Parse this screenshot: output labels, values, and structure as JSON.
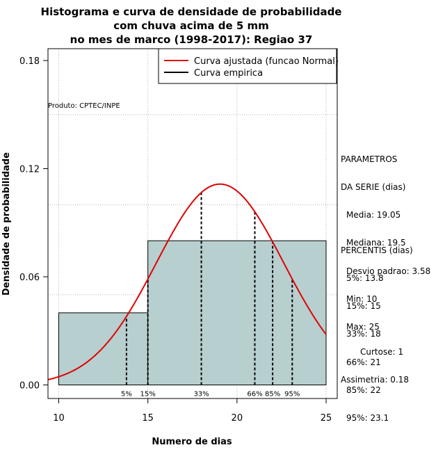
{
  "chart_data": {
    "type": "histogram",
    "title_lines": [
      "Histograma e curva de densidade de probabilidade",
      "com chuva acima de 5 mm",
      "no mes de marco (1998-2017): Regiao 37"
    ],
    "xlabel": "Numero de dias",
    "ylabel": "Densidade de probabilidade",
    "xlim": [
      9.4,
      25.6
    ],
    "ylim": [
      0,
      0.18
    ],
    "x_ticks": [
      10,
      15,
      20,
      25
    ],
    "y_ticks": [
      0.0,
      0.06,
      0.12,
      0.18
    ],
    "y_tick_labels": [
      "0.00",
      "0.06",
      "0.12",
      "0.18"
    ],
    "grid_x": [
      10,
      15,
      20,
      25
    ],
    "grid_y": [
      0.05,
      0.1,
      0.15
    ],
    "bins": [
      {
        "from": 10,
        "to": 15,
        "density": 0.04
      },
      {
        "from": 15,
        "to": 25,
        "density": 0.08
      }
    ],
    "fitted_curve": {
      "distribution": "normal",
      "mean": 19.05,
      "sd": 3.58,
      "x_range": [
        9.4,
        25
      ]
    },
    "percentile_lines": [
      {
        "label": "5%",
        "x": 13.8
      },
      {
        "label": "15%",
        "x": 15
      },
      {
        "label": "33%",
        "x": 18
      },
      {
        "label": "66%",
        "x": 21
      },
      {
        "label": "85%",
        "x": 22
      },
      {
        "label": "95%",
        "x": 23.1
      }
    ],
    "legend": {
      "position": "top-right",
      "entries": [
        {
          "label": "Curva ajustada (funcao Normal)",
          "color": "#e00000"
        },
        {
          "label": "Curva empirica",
          "color": "#000000"
        }
      ]
    },
    "annotation": "Produto: CPTEC/INPE",
    "colors": {
      "bar_fill": "#b7cfcf",
      "curve": "#e00000",
      "grid": "#b3b3b3",
      "axis": "#000000"
    }
  },
  "side_panel": {
    "params_title": [
      "PARAMETROS",
      "DA SERIE (dias)"
    ],
    "params": [
      "Media: 19.05",
      "Mediana: 19.5",
      "Desvio padrao: 3.58",
      "Min: 10",
      "Max: 25"
    ],
    "percentis_title": "PERCENTIS (dias)",
    "percentis": [
      "5%: 13.8",
      "15%: 15",
      "33%: 18",
      "66%: 21",
      "85%: 22",
      "95%: 23.1"
    ],
    "curtose": "Curtose: 1",
    "assimetria": "Assimetria: 0.18"
  }
}
